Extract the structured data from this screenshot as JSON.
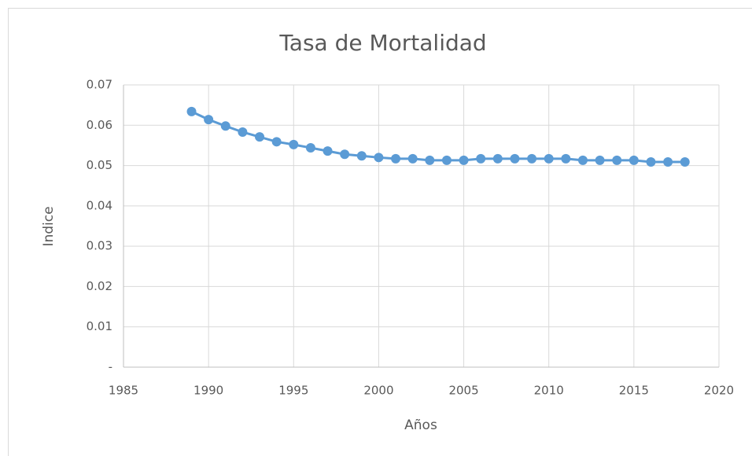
{
  "chart_data": {
    "type": "line",
    "title": "Tasa de Mortalidad",
    "x_label": "Años",
    "y_label": "Indice",
    "x": [
      1989,
      1990,
      1991,
      1992,
      1993,
      1994,
      1995,
      1996,
      1997,
      1998,
      1999,
      2000,
      2001,
      2002,
      2003,
      2004,
      2005,
      2006,
      2007,
      2008,
      2009,
      2010,
      2011,
      2012,
      2013,
      2014,
      2015,
      2016,
      2017,
      2018
    ],
    "values": [
      0.0634,
      0.0614,
      0.0598,
      0.0583,
      0.0571,
      0.0559,
      0.0552,
      0.0544,
      0.0536,
      0.0528,
      0.0524,
      0.052,
      0.0517,
      0.0517,
      0.0513,
      0.0513,
      0.0513,
      0.0517,
      0.0517,
      0.0517,
      0.0517,
      0.0517,
      0.0517,
      0.0513,
      0.0513,
      0.0513,
      0.0513,
      0.0509,
      0.0509,
      0.0509
    ],
    "color": "#5b9bd5",
    "xlim": [
      1985,
      2020
    ],
    "xticks": [
      1985,
      1990,
      1995,
      2000,
      2005,
      2010,
      2015,
      2020
    ],
    "ylim": [
      0,
      0.07
    ],
    "yticks": [
      {
        "value": 0,
        "label": "-"
      },
      0.01,
      0.02,
      0.03,
      0.04,
      0.05,
      0.06,
      0.07
    ],
    "grid": true
  }
}
